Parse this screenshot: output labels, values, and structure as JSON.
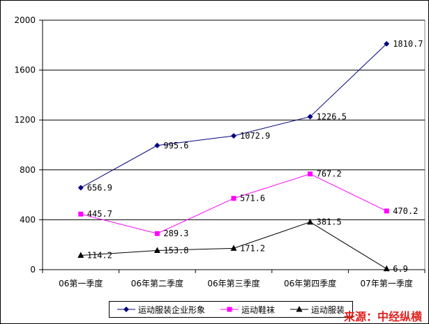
{
  "chart_data": {
    "type": "line",
    "categories": [
      "06第一季度",
      "06年第二季度",
      "06年第三季度",
      "06年第四季度",
      "07年第一季度"
    ],
    "y_ticks": [
      "0",
      "400",
      "800",
      "1200",
      "1600",
      "2000"
    ],
    "ylim": [
      0,
      2000
    ],
    "grid": "horizontal",
    "legend_position": "bottom",
    "series": [
      {
        "name": "运动服装企业形象",
        "color": "#000080",
        "marker": "diamond",
        "values": [
          656.9,
          995.6,
          1072.9,
          1226.5,
          1810.7
        ],
        "labels": [
          "656.9",
          "995.6",
          "1072.9",
          "1226.5",
          "1810.7"
        ]
      },
      {
        "name": "运动鞋袜",
        "color": "#ff00ff",
        "marker": "square",
        "values": [
          445.7,
          289.3,
          571.6,
          767.2,
          470.2
        ],
        "labels": [
          "445.7",
          "289.3",
          "571.6",
          "767.2",
          "470.2"
        ]
      },
      {
        "name": "运动服装",
        "color": "#000000",
        "marker": "triangle",
        "values": [
          114.2,
          153.8,
          171.2,
          381.5,
          6.9
        ],
        "labels": [
          "114.2",
          "153.8",
          "171.2",
          "381.5",
          "6.9"
        ]
      }
    ]
  },
  "source": "来源：中经纵横"
}
